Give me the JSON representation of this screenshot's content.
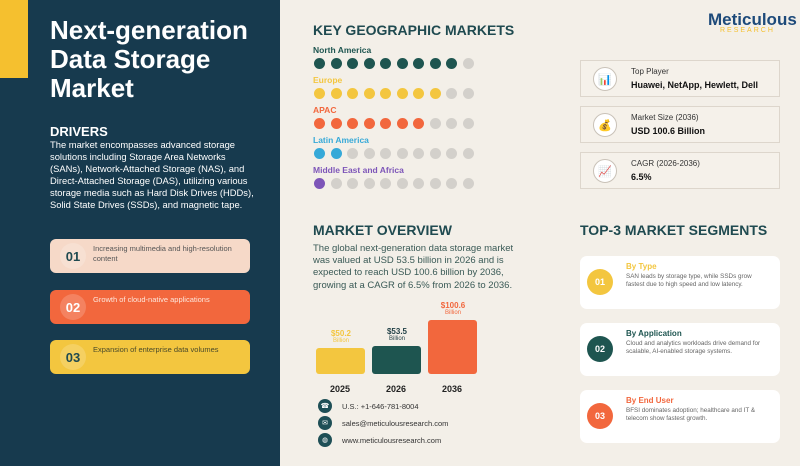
{
  "title": "Next-generation Data Storage Market",
  "drivers": {
    "heading": "DRIVERS",
    "text": "The market encompasses advanced storage solutions including Storage Area Networks (SANs), Network-Attached Storage (NAS), and Direct-Attached Storage (DAS), utilizing various storage media such as Hard Disk Drives (HDDs), Solid State Drives (SSDs), and magnetic tape.",
    "items": [
      {
        "num": "01",
        "text": "Increasing multimedia and high-resolution content",
        "bg": "#f6d9c8",
        "numColor": "#1f4a50",
        "textColor": "#555"
      },
      {
        "num": "02",
        "text": "Growth of cloud-native applications",
        "bg": "#f2673d",
        "numColor": "#fff",
        "textColor": "#fde7dc"
      },
      {
        "num": "03",
        "text": "Expansion of enterprise data volumes",
        "bg": "#f3c63f",
        "numColor": "#1f4a50",
        "textColor": "#4a4a2a"
      }
    ]
  },
  "geo": {
    "heading": "KEY GEOGRAPHIC MARKETS",
    "regions": [
      {
        "name": "North America",
        "filled": 9,
        "color": "#1e5550"
      },
      {
        "name": "Europe",
        "filled": 8,
        "color": "#f3c63f"
      },
      {
        "name": "APAC",
        "filled": 7,
        "color": "#f2673d"
      },
      {
        "name": "Latin America",
        "filled": 2,
        "color": "#36a9d8"
      },
      {
        "name": "Middle East and Africa",
        "filled": 1,
        "color": "#7d55b8"
      }
    ],
    "total": 10
  },
  "logo": {
    "name": "Meticulous",
    "sub": "RESEARCH"
  },
  "stats": [
    {
      "icon": "bar-chart-icon",
      "glyph": "📊",
      "label": "Top Player",
      "value": "Huawei, NetApp, Hewlett, Dell"
    },
    {
      "icon": "money-bag-icon",
      "glyph": "💰",
      "label": "Market Size (2036)",
      "value": "USD 100.6 Billion"
    },
    {
      "icon": "growth-chart-icon",
      "glyph": "📈",
      "label": "CAGR (2026-2036)",
      "value": "6.5%"
    }
  ],
  "overview": {
    "heading": "MARKET OVERVIEW",
    "text": "The global next-generation data storage market was valued at USD 53.5 billion in 2026 and is expected to reach USD 100.6 billion by 2036, growing at a CAGR of 6.5% from 2026 to 2036."
  },
  "chart_data": {
    "type": "bar",
    "categories": [
      "2025",
      "2026",
      "2036"
    ],
    "values": [
      50.2,
      53.5,
      100.6
    ],
    "labels": [
      "$50.2",
      "$53.5",
      "$100.6"
    ],
    "unit": "Billion",
    "colors": [
      "#f3c63f",
      "#1e5550",
      "#f2673d"
    ]
  },
  "contact": [
    {
      "icon": "phone-icon",
      "glyph": "☎",
      "text": "U.S.: +1-646-781-8004"
    },
    {
      "icon": "email-icon",
      "glyph": "✉",
      "text": "sales@meticulousresearch.com"
    },
    {
      "icon": "globe-icon",
      "glyph": "◍",
      "text": "www.meticulousresearch.com"
    }
  ],
  "segments": {
    "heading": "TOP-3 MARKET SEGMENTS",
    "items": [
      {
        "num": "01",
        "title": "By Type",
        "text": "SAN leads by storage type, while SSDs grow fastest due to high speed and low latency.",
        "color": "#f3c63f"
      },
      {
        "num": "02",
        "title": "By Application",
        "text": "Cloud and analytics workloads drive demand for scalable, AI-enabled storage systems.",
        "color": "#1e5550"
      },
      {
        "num": "03",
        "title": "By End User",
        "text": "BFSI dominates adoption; healthcare and IT & telecom show fastest growth.",
        "color": "#f2673d"
      }
    ]
  }
}
